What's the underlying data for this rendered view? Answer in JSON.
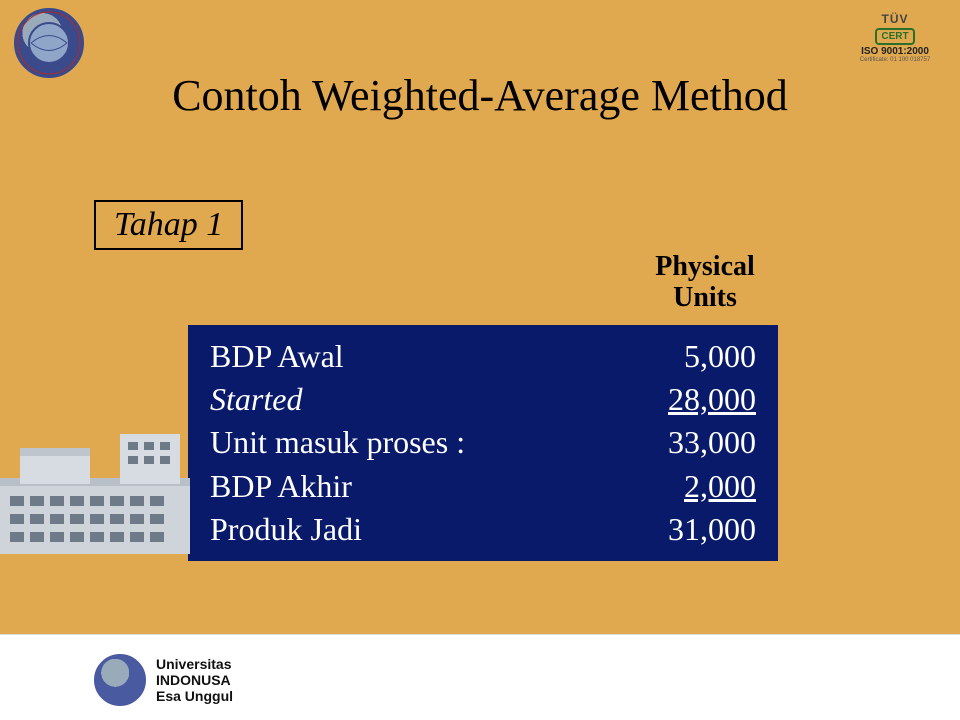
{
  "colors": {
    "slide_bg": "#e1a94f",
    "table_bg": "#0a1a6a",
    "table_text": "#ffffff",
    "title_text": "#000000",
    "footer_bg": "#ffffff"
  },
  "header": {
    "title": "Contoh Weighted-Average Method"
  },
  "badge": {
    "brand": "TÜV",
    "cert": "CERT",
    "iso": "ISO 9001:2000",
    "cert_no": "Certificate: 01 100 018757"
  },
  "stage": {
    "label": "Tahap 1"
  },
  "table": {
    "column_header_line1": "Physical",
    "column_header_line2": "Units",
    "rows": [
      {
        "label": "BDP Awal",
        "value": "5,000",
        "italic": false,
        "underline": false
      },
      {
        "label": "Started",
        "value": "28,000",
        "italic": true,
        "underline": true
      },
      {
        "label": "Unit masuk proses  :",
        "value": "33,000",
        "italic": false,
        "underline": false
      },
      {
        "label": "BDP Akhir",
        "value": "  2,000",
        "italic": false,
        "underline": true
      },
      {
        "label": "Produk Jadi",
        "value": "31,000",
        "italic": false,
        "underline": false
      }
    ]
  },
  "footer": {
    "line1": "Universitas",
    "line2": "INDONUSA",
    "line3": "Esa Unggul"
  }
}
